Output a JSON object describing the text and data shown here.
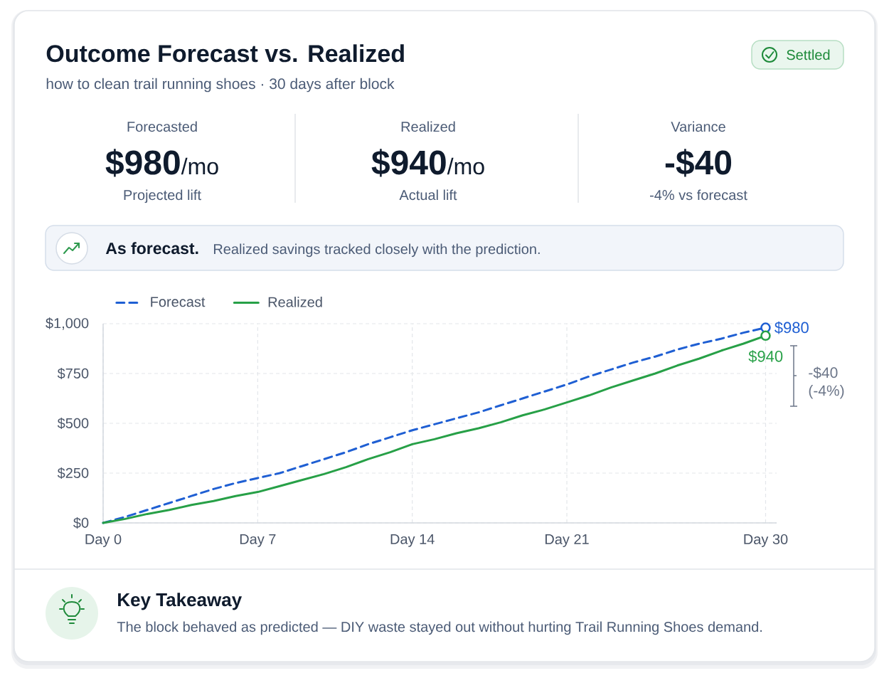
{
  "chart_data": {
    "type": "line",
    "title": "Outcome Forecast vs. Realized",
    "subtitle": "how to clean trail running shoes · 30 days after block",
    "categories": [
      "Day 0",
      null,
      null,
      null,
      null,
      null,
      null,
      "Day 7",
      null,
      null,
      null,
      null,
      null,
      null,
      "Day 14",
      null,
      null,
      null,
      null,
      null,
      null,
      "Day 21",
      null,
      null,
      null,
      null,
      null,
      null,
      null,
      null,
      "Day 30"
    ],
    "ylim": [
      0,
      1000
    ],
    "yticks": [
      {
        "value": 0,
        "label": "$0"
      },
      {
        "value": 250,
        "label": "$250"
      },
      {
        "value": 500,
        "label": "$500"
      },
      {
        "value": 750,
        "label": "$750"
      },
      {
        "value": 1000,
        "label": "$1,000"
      }
    ],
    "grid": true,
    "legend": "top left",
    "series": [
      {
        "name": "Forecast",
        "color": "#1f5fd3",
        "line_style": "dashed",
        "values": [
          0,
          30,
          65,
          100,
          135,
          170,
          200,
          225,
          250,
          285,
          320,
          355,
          395,
          430,
          465,
          495,
          525,
          555,
          590,
          625,
          660,
          695,
          735,
          770,
          805,
          835,
          870,
          900,
          925,
          955,
          980
        ],
        "value_labels": [
          null,
          null,
          null,
          null,
          null,
          null,
          null,
          null,
          null,
          null,
          null,
          null,
          null,
          null,
          null,
          null,
          null,
          null,
          null,
          null,
          null,
          null,
          null,
          null,
          null,
          null,
          null,
          null,
          null,
          null,
          "$980"
        ]
      },
      {
        "name": "Realized",
        "color": "#27a047",
        "line_style": "solid",
        "values": [
          0,
          20,
          45,
          65,
          90,
          110,
          135,
          155,
          185,
          215,
          245,
          280,
          320,
          355,
          395,
          420,
          450,
          475,
          505,
          540,
          570,
          605,
          640,
          680,
          715,
          750,
          790,
          825,
          865,
          900,
          940
        ],
        "value_labels": [
          null,
          null,
          null,
          null,
          null,
          null,
          null,
          null,
          null,
          null,
          null,
          null,
          null,
          null,
          null,
          null,
          null,
          null,
          null,
          null,
          null,
          null,
          null,
          null,
          null,
          null,
          null,
          null,
          null,
          null,
          "$940"
        ]
      }
    ],
    "annotations": [
      "Settled",
      "Forecasted",
      "$980",
      "/mo",
      "Projected lift",
      "Realized",
      "$940",
      "/mo",
      "Actual lift",
      "Variance",
      "-$40",
      "-4% vs forecast",
      "As forecast.",
      "Realized savings tracked closely with the prediction.",
      "-$40 (-4%)",
      "Key Takeaway",
      "The block behaved as predicted — DIY waste stayed out without hurting Trail Running Shoes demand."
    ]
  }
}
